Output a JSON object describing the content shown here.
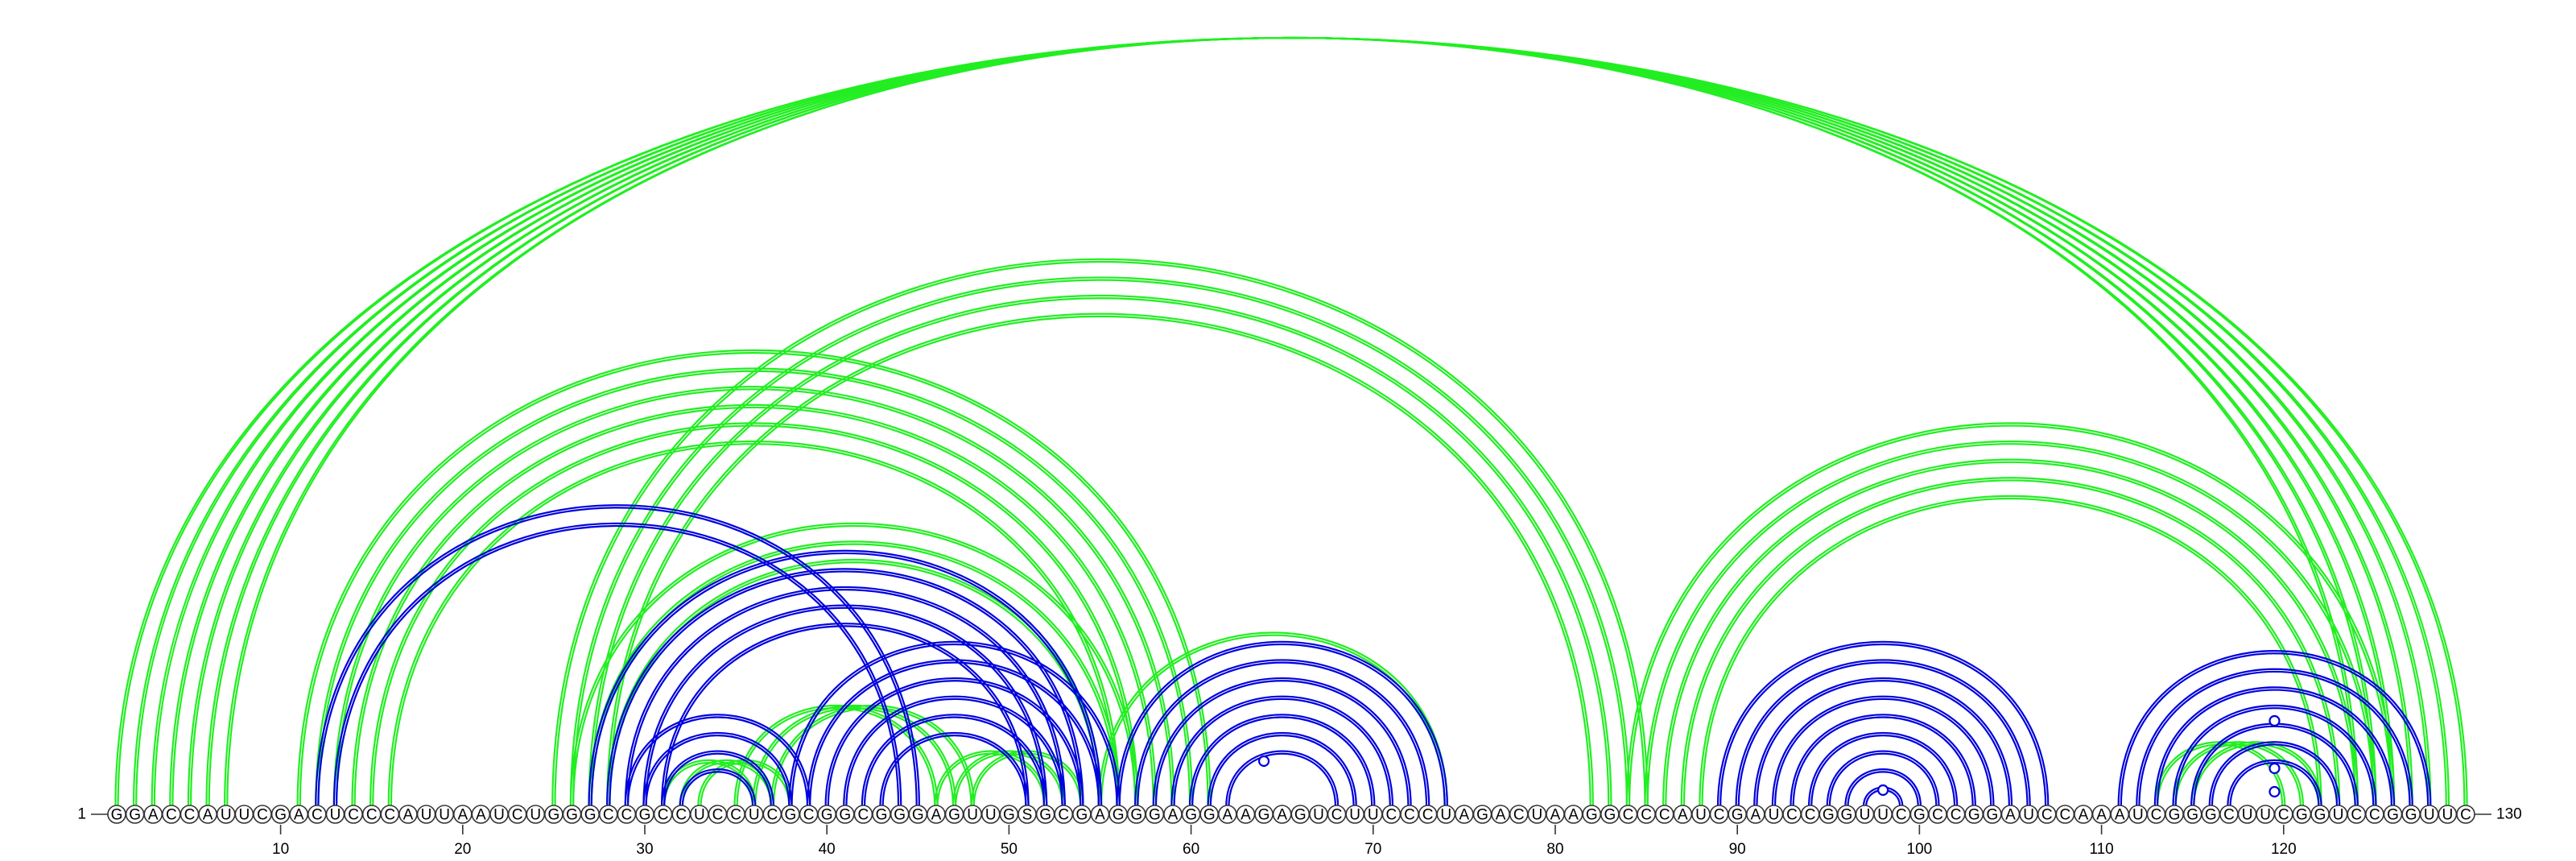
{
  "sequence": "GGACCAUUCGACUCCCAUUAAUCUGGGCCGCCUCCUCGCGGCGGGAGUUGSGCGAGGGAGGAAGAGUCUUCCCUAGACUAAGGCCCAUCGAUCCGGUUCGCCGGAUCCAAAUCGGGCUUCGGUCCGGUUC",
  "start_label": "1",
  "end_label": "130",
  "ticks": [
    10,
    20,
    30,
    40,
    50,
    60,
    70,
    80,
    90,
    100,
    110,
    120
  ],
  "colors": {
    "blue": "#0000dd",
    "green": "#22ee22",
    "backbone": "#333333"
  },
  "green_arcs": [
    [
      1,
      130
    ],
    [
      2,
      129
    ],
    [
      3,
      128
    ],
    [
      4,
      127
    ],
    [
      5,
      126
    ],
    [
      6,
      125
    ],
    [
      7,
      124
    ],
    [
      11,
      61
    ],
    [
      12,
      60
    ],
    [
      13,
      59
    ],
    [
      14,
      58
    ],
    [
      15,
      57
    ],
    [
      16,
      56
    ],
    [
      25,
      85
    ],
    [
      26,
      84
    ],
    [
      27,
      83
    ],
    [
      28,
      82
    ],
    [
      26,
      57
    ],
    [
      27,
      56
    ],
    [
      28,
      55
    ],
    [
      31,
      36
    ],
    [
      32,
      37
    ],
    [
      33,
      38
    ],
    [
      35,
      46
    ],
    [
      36,
      47
    ],
    [
      37,
      48
    ],
    [
      46,
      52
    ],
    [
      47,
      53
    ],
    [
      48,
      54
    ],
    [
      55,
      74
    ],
    [
      84,
      126
    ],
    [
      85,
      125
    ],
    [
      86,
      124
    ],
    [
      87,
      123
    ],
    [
      88,
      122
    ],
    [
      113,
      120
    ],
    [
      114,
      121
    ],
    [
      115,
      122
    ]
  ],
  "blue_arcs": [
    [
      12,
      45
    ],
    [
      13,
      44
    ],
    [
      27,
      55
    ],
    [
      28,
      54
    ],
    [
      29,
      53
    ],
    [
      30,
      52
    ],
    [
      31,
      51
    ],
    [
      29,
      39
    ],
    [
      30,
      38
    ],
    [
      31,
      37
    ],
    [
      32,
      36
    ],
    [
      38,
      56
    ],
    [
      39,
      55
    ],
    [
      40,
      54
    ],
    [
      41,
      53
    ],
    [
      42,
      52
    ],
    [
      43,
      51
    ],
    [
      56,
      74
    ],
    [
      57,
      73
    ],
    [
      58,
      72
    ],
    [
      59,
      71
    ],
    [
      60,
      70
    ],
    [
      61,
      69
    ],
    [
      62,
      68
    ],
    [
      89,
      107
    ],
    [
      90,
      106
    ],
    [
      91,
      105
    ],
    [
      92,
      104
    ],
    [
      93,
      103
    ],
    [
      94,
      102
    ],
    [
      95,
      101
    ],
    [
      96,
      100
    ],
    [
      97,
      99
    ],
    [
      111,
      128
    ],
    [
      112,
      127
    ],
    [
      113,
      126
    ],
    [
      114,
      125
    ],
    [
      115,
      124
    ],
    [
      116,
      123
    ],
    [
      117,
      122
    ]
  ],
  "blue_markers": [
    {
      "at": 64,
      "height": 66
    },
    {
      "at": 98,
      "height": 30
    },
    {
      "at": 119.5,
      "height": 116
    },
    {
      "at": 119.5,
      "height": 57
    },
    {
      "at": 119.5,
      "height": 28
    }
  ]
}
